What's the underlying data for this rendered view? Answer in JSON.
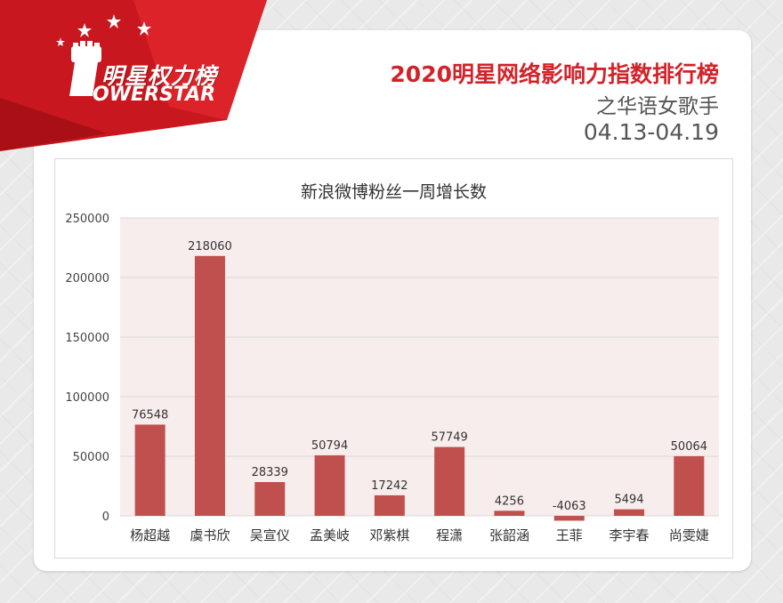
{
  "brand": {
    "logo_cn": "明星权力榜",
    "logo_en": "OWERSTAR"
  },
  "header": {
    "title": "2020明星网络影响力指数排行榜",
    "subtitle": "之华语女歌手",
    "date_range": "04.13-04.19"
  },
  "colors": {
    "accent": "#d2232a",
    "bar": "#c0504d",
    "plot_bg": "#f8eded"
  },
  "chart_data": {
    "type": "bar",
    "title": "新浪微博粉丝一周增长数",
    "categories": [
      "杨超越",
      "虞书欣",
      "吴宣仪",
      "孟美岐",
      "邓紫棋",
      "程潇",
      "张韶涵",
      "王菲",
      "李宇春",
      "尚雯婕"
    ],
    "values": [
      76548,
      218060,
      28339,
      50794,
      17242,
      57749,
      4256,
      -4063,
      5494,
      50064
    ],
    "ylim": [
      0,
      250000
    ],
    "yticks": [
      0,
      50000,
      100000,
      150000,
      200000,
      250000
    ],
    "xlabel": "",
    "ylabel": "",
    "grid": true,
    "data_labels": true
  }
}
